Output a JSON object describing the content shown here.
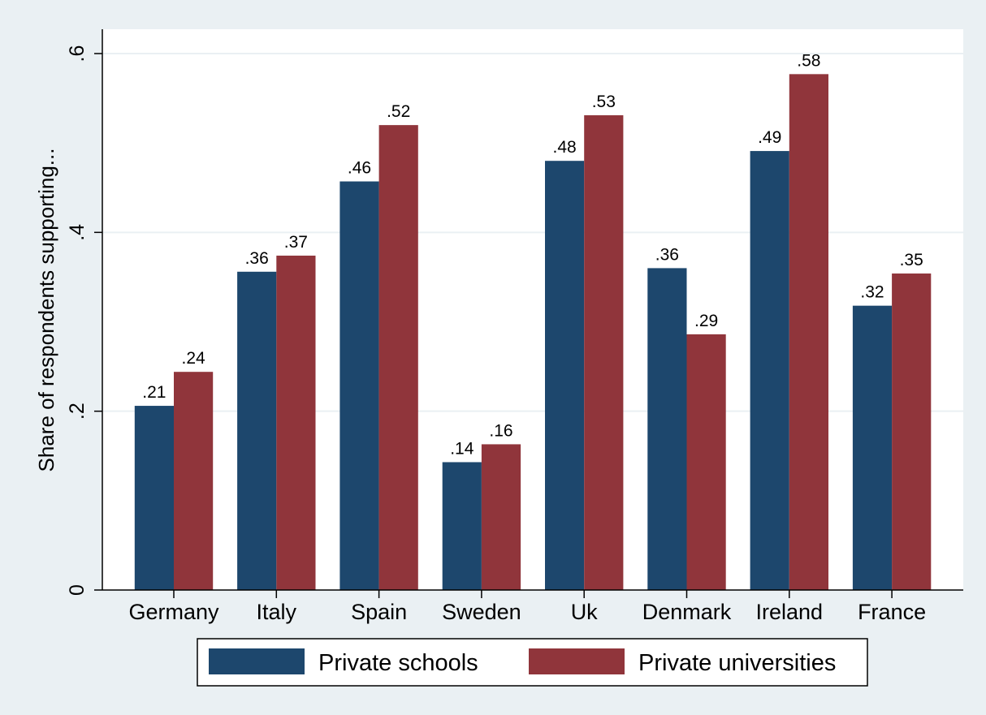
{
  "chart_data": {
    "type": "bar",
    "categories": [
      "Germany",
      "Italy",
      "Spain",
      "Sweden",
      "Uk",
      "Denmark",
      "Ireland",
      "France"
    ],
    "series": [
      {
        "name": "Private schools",
        "values": [
          0.206,
          0.356,
          0.457,
          0.143,
          0.48,
          0.36,
          0.491,
          0.318
        ],
        "labels": [
          ".21",
          ".36",
          ".46",
          ".14",
          ".48",
          ".36",
          ".49",
          ".32"
        ],
        "color": "#1d476d"
      },
      {
        "name": "Private universities",
        "values": [
          0.244,
          0.374,
          0.52,
          0.163,
          0.531,
          0.286,
          0.577,
          0.354
        ],
        "labels": [
          ".24",
          ".37",
          ".52",
          ".16",
          ".53",
          ".29",
          ".58",
          ".35"
        ],
        "color": "#90353b"
      }
    ],
    "title": "",
    "xlabel": "",
    "ylabel": "Share of respondents supporting...",
    "ylim": [
      0,
      0.6
    ],
    "yticks": [
      0,
      0.2,
      0.4,
      0.6
    ],
    "ytick_labels": [
      "0",
      ".2",
      ".4",
      ".6"
    ],
    "grid": true,
    "legend_placement": "bottom"
  },
  "colors": {
    "background": "#eaf0f3",
    "plot_background": "#ffffff",
    "gridline": "#eaf0f3",
    "axis": "#000000"
  }
}
